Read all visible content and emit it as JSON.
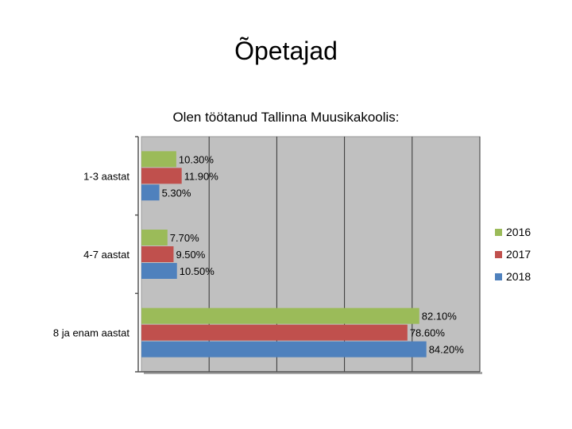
{
  "slide": {
    "title": "Õpetajad"
  },
  "chart_data": {
    "type": "bar",
    "orientation": "horizontal",
    "title": "Olen töötanud Tallinna Muusikakoolis:",
    "categories": [
      "1-3 aastat",
      "4-7 aastat",
      "8 ja enam aastat"
    ],
    "series": [
      {
        "name": "2016",
        "color": "#9bbb59",
        "values": [
          10.3,
          7.7,
          82.1
        ],
        "labels": [
          "10.30%",
          "7.70%",
          "82.10%"
        ]
      },
      {
        "name": "2017",
        "color": "#c0504d",
        "values": [
          11.9,
          9.5,
          78.6
        ],
        "labels": [
          "11.90%",
          "9.50%",
          "78.60%"
        ]
      },
      {
        "name": "2018",
        "color": "#4f81bd",
        "values": [
          5.3,
          10.5,
          84.2
        ],
        "labels": [
          "5.30%",
          "10.50%",
          "84.20%"
        ]
      }
    ],
    "xlim": [
      0,
      100
    ],
    "grid": true,
    "legend_position": "right",
    "plot_background": "#c0c0c0"
  }
}
